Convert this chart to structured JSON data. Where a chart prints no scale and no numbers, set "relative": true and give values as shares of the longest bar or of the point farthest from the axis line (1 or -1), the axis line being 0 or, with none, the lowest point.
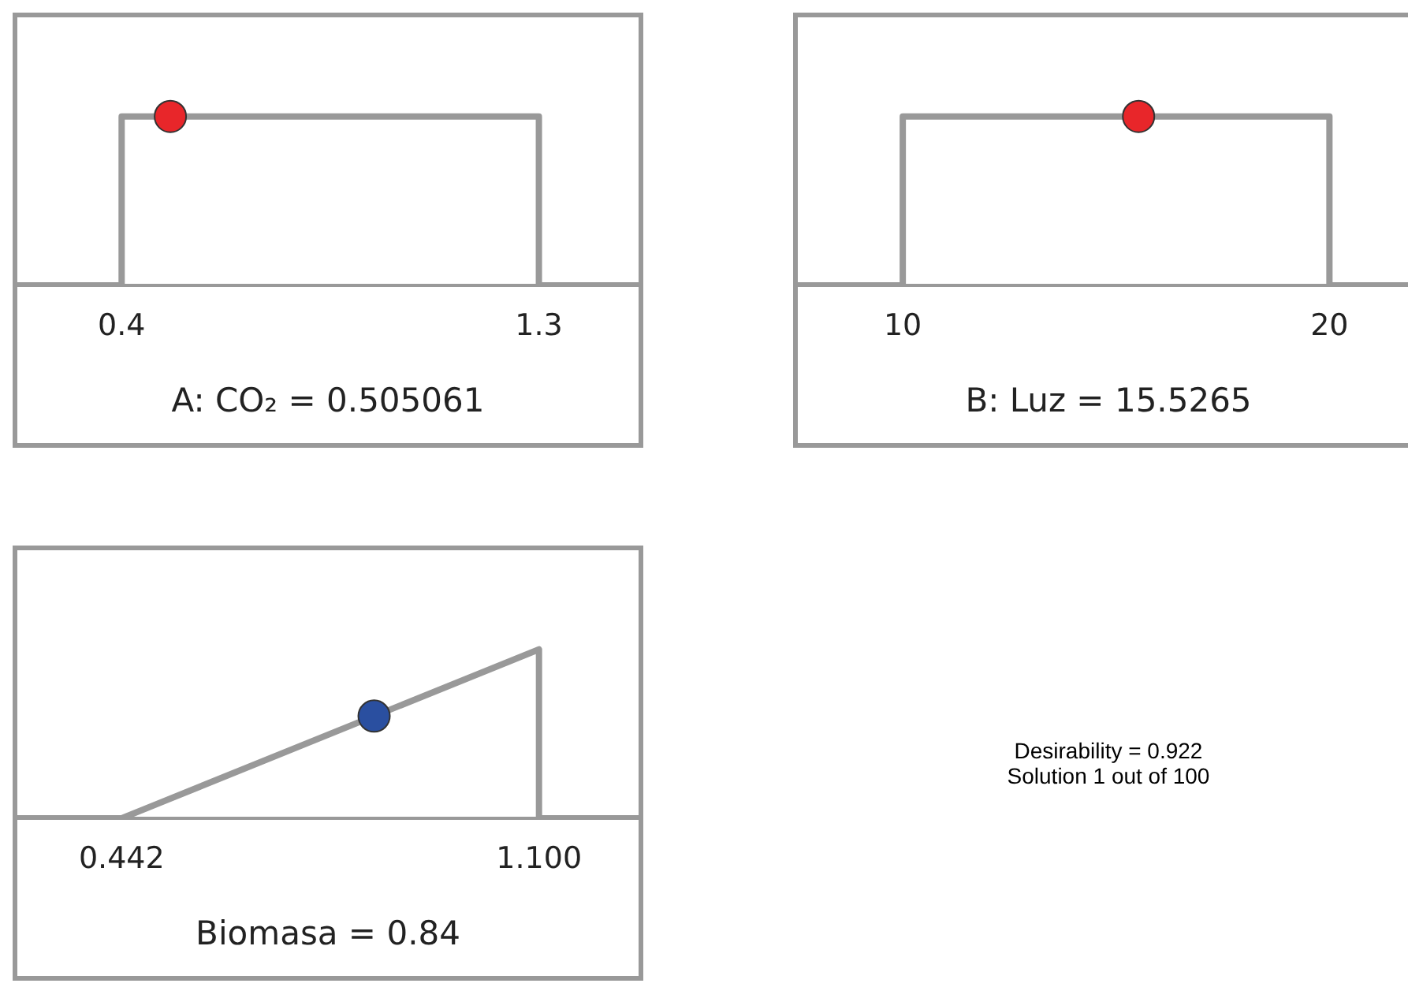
{
  "chart_data": [
    {
      "type": "line",
      "xlabel": "A: CO₂ = 0.505061",
      "xlim": [
        0.175,
        1.515
      ],
      "xticks": [
        0.4,
        1.3
      ],
      "relative": true,
      "line_style": "solid",
      "series": [
        {
          "type": "step",
          "color": "#999999",
          "marker": "none",
          "x": [
            0.175,
            0.4,
            1.3,
            1.515
          ],
          "values": [
            0,
            1,
            0,
            0
          ]
        },
        {
          "type": "scatter",
          "color": "#e8262a",
          "marker": "circle",
          "x": [
            0.505061
          ],
          "values": [
            1
          ]
        }
      ]
    },
    {
      "type": "line",
      "xlabel": "B: Luz = 15.5265",
      "xlim": [
        7.54,
        22.1
      ],
      "xticks": [
        10,
        20
      ],
      "relative": true,
      "line_style": "solid",
      "series": [
        {
          "type": "step",
          "color": "#999999",
          "marker": "none",
          "x": [
            7.54,
            10,
            20,
            22.1
          ],
          "values": [
            0,
            1,
            0,
            0
          ]
        },
        {
          "type": "scatter",
          "color": "#e8262a",
          "marker": "circle",
          "x": [
            15.5265
          ],
          "values": [
            1
          ]
        }
      ]
    },
    {
      "type": "line",
      "xlabel": "Biomasa = 0.84",
      "xlim": [
        0.2775,
        1.257
      ],
      "xticks": [
        {
          "value": 0.442,
          "label": "0.442"
        },
        {
          "value": 1.1,
          "label": "1.100"
        }
      ],
      "relative": true,
      "line_style": "solid",
      "series": [
        {
          "type": "line",
          "color": "#999999",
          "marker": "none",
          "x": [
            0.2775,
            0.442,
            1.1,
            1.1,
            1.257
          ],
          "values": [
            0,
            0,
            1,
            0,
            0
          ]
        },
        {
          "type": "scatter",
          "color": "#2a4fa0",
          "marker": "circle",
          "x": [
            0.84
          ],
          "values": [
            0.605
          ]
        }
      ]
    },
    {
      "type": "other",
      "annotations": [
        "Desirability = 0.922",
        "Solution 1 out of 100"
      ]
    }
  ]
}
